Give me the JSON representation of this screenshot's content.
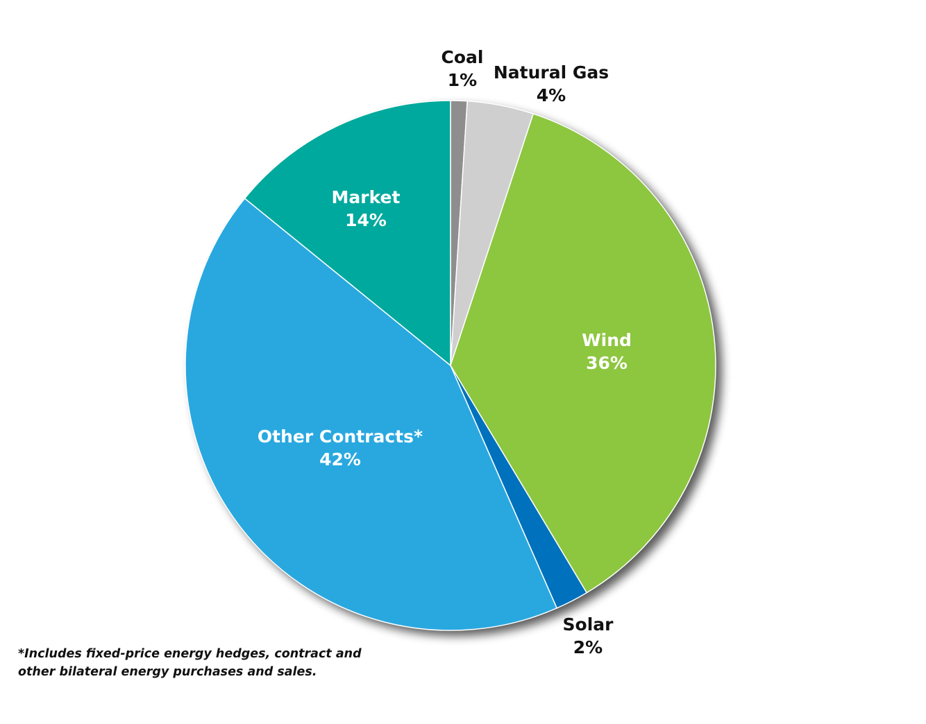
{
  "chart_data": {
    "type": "pie",
    "title": "",
    "start_angle_deg": 0,
    "direction": "clockwise",
    "slices": [
      {
        "label": "Coal",
        "value_text": "1%",
        "value": 1,
        "color": "#8e8e8e",
        "label_color": "#111111",
        "label_position": "outside"
      },
      {
        "label": "Natural Gas",
        "value_text": "4%",
        "value": 4,
        "color": "#cfcfcf",
        "label_color": "#111111",
        "label_position": "outside"
      },
      {
        "label": "Wind",
        "value_text": "36%",
        "value": 36,
        "color": "#8dc63f",
        "label_color": "#ffffff",
        "label_position": "inside"
      },
      {
        "label": "Solar",
        "value_text": "2%",
        "value": 2,
        "color": "#0071bc",
        "label_color": "#111111",
        "label_position": "outside"
      },
      {
        "label": "Other Contracts*",
        "value_text": "42%",
        "value": 42,
        "color": "#29a8e0",
        "label_color": "#ffffff",
        "label_position": "inside"
      },
      {
        "label": "Market",
        "value_text": "14%",
        "value": 14,
        "color": "#00a99d",
        "label_color": "#ffffff",
        "label_position": "inside"
      }
    ],
    "footnote": "*Includes fixed-price energy hedges, contract and other bilateral energy purchases and sales."
  }
}
